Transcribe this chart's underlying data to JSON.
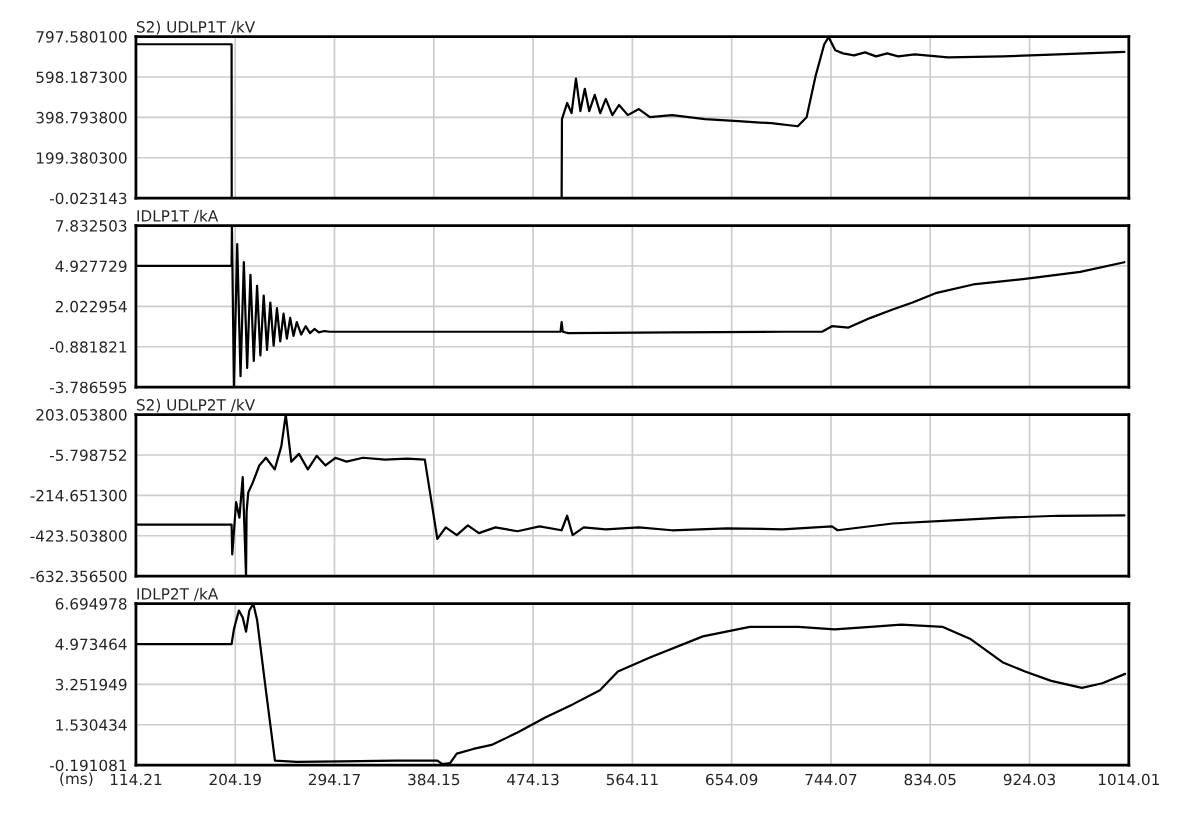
{
  "chart_data": [
    {
      "type": "line",
      "title": "S2) UDLP1T /kV",
      "color": "#000000",
      "grid": true,
      "tick_labels": "y",
      "x": [
        114.21,
        200.9,
        201.0,
        500.0,
        500.3,
        505,
        509,
        513,
        517,
        521,
        525,
        530,
        535,
        540,
        546,
        552,
        560,
        570,
        580,
        600,
        630,
        660,
        690,
        714,
        722,
        730,
        738,
        742,
        748,
        755,
        765,
        775,
        785,
        795,
        805,
        820,
        850,
        900,
        950,
        1010
      ],
      "values": [
        760,
        760,
        0,
        0,
        390,
        470,
        420,
        590,
        430,
        540,
        430,
        510,
        420,
        490,
        410,
        460,
        410,
        440,
        400,
        410,
        390,
        380,
        370,
        355,
        400,
        600,
        760,
        795,
        730,
        715,
        705,
        720,
        700,
        715,
        700,
        710,
        695,
        700,
        710,
        722
      ],
      "xlim": [
        114.21,
        1014.01
      ],
      "xticks": [
        114.21,
        204.19,
        294.17,
        384.15,
        474.13,
        564.11,
        654.09,
        744.07,
        834.05,
        924.03,
        1014.01
      ],
      "ylim": [
        -0.023143,
        797.5801
      ],
      "yticks": [
        {
          "value": -0.023143,
          "label": "-0.023143"
        },
        {
          "value": 199.3803,
          "label": "199.380300"
        },
        {
          "value": 398.7938,
          "label": "398.793800"
        },
        {
          "value": 598.1873,
          "label": "598.187300"
        },
        {
          "value": 797.5801,
          "label": "797.580100"
        }
      ]
    },
    {
      "type": "line",
      "title": "IDLP1T /kA",
      "color": "#000000",
      "grid": true,
      "tick_labels": "y",
      "x": [
        114.21,
        200.9,
        201.2,
        203,
        206,
        209,
        212,
        215,
        218,
        221,
        224,
        227,
        230,
        233,
        236,
        239,
        242,
        245,
        248,
        251,
        254,
        257,
        260,
        264,
        268,
        272,
        276,
        280,
        285,
        290,
        350,
        450,
        499,
        500,
        501,
        506,
        600,
        700,
        736,
        745,
        760,
        780,
        800,
        818,
        840,
        873,
        920,
        970,
        1010
      ],
      "values": [
        4.93,
        4.93,
        7.8,
        -3.7,
        6.5,
        -3.0,
        5.2,
        -2.4,
        4.3,
        -1.9,
        3.5,
        -1.5,
        2.8,
        -1.1,
        2.3,
        -0.8,
        1.9,
        -0.5,
        1.5,
        -0.3,
        1.2,
        -0.1,
        0.9,
        0.0,
        0.6,
        0.1,
        0.4,
        0.15,
        0.25,
        0.2,
        0.2,
        0.2,
        0.2,
        0.9,
        0.2,
        0.1,
        0.15,
        0.2,
        0.2,
        0.6,
        0.5,
        1.2,
        1.8,
        2.3,
        3.0,
        3.6,
        4.0,
        4.5,
        5.2
      ],
      "xlim": [
        114.21,
        1014.01
      ],
      "xticks": [
        114.21,
        204.19,
        294.17,
        384.15,
        474.13,
        564.11,
        654.09,
        744.07,
        834.05,
        924.03,
        1014.01
      ],
      "ylim": [
        -3.786595,
        7.832503
      ],
      "yticks": [
        {
          "value": -3.786595,
          "label": "-3.786595"
        },
        {
          "value": -0.881821,
          "label": "-0.881821"
        },
        {
          "value": 2.022954,
          "label": "2.022954"
        },
        {
          "value": 4.927729,
          "label": "4.927729"
        },
        {
          "value": 7.832503,
          "label": "7.832503"
        }
      ]
    },
    {
      "type": "line",
      "title": "S2) UDLP2T /kV",
      "color": "#000000",
      "grid": true,
      "tick_labels": "y",
      "x": [
        114.21,
        200.9,
        201.5,
        205,
        208,
        211,
        214,
        214.5,
        216,
        220,
        226,
        232,
        240,
        246,
        250,
        255,
        262,
        270,
        278,
        286,
        295,
        305,
        320,
        340,
        360,
        376,
        387.4,
        395,
        405,
        415,
        425,
        440,
        460,
        480,
        500,
        505,
        510,
        520,
        540,
        570,
        600,
        650,
        700,
        745,
        750,
        800,
        850,
        900,
        950,
        1010
      ],
      "values": [
        -366,
        -366,
        -520,
        -250,
        -330,
        -120,
        -632,
        -300,
        -200,
        -150,
        -60,
        -20,
        -80,
        40,
        203,
        -40,
        0,
        -80,
        -10,
        -60,
        -20,
        -40,
        -20,
        -30,
        -25,
        -30,
        -440,
        -380,
        -420,
        -370,
        -410,
        -380,
        -400,
        -375,
        -395,
        -320,
        -420,
        -380,
        -390,
        -380,
        -395,
        -385,
        -390,
        -375,
        -395,
        -360,
        -345,
        -330,
        -320,
        -318
      ],
      "xlim": [
        114.21,
        1014.01
      ],
      "xticks": [
        114.21,
        204.19,
        294.17,
        384.15,
        474.13,
        564.11,
        654.09,
        744.07,
        834.05,
        924.03,
        1014.01
      ],
      "ylim": [
        -632.3565,
        203.0538
      ],
      "yticks": [
        {
          "value": -632.3565,
          "label": "-632.356500"
        },
        {
          "value": -423.5038,
          "label": "-423.503800"
        },
        {
          "value": -214.6513,
          "label": "-214.651300"
        },
        {
          "value": -5.798752,
          "label": "-5.798752"
        },
        {
          "value": 203.0538,
          "label": "203.053800"
        }
      ]
    },
    {
      "type": "line",
      "title": "IDLP2T /kA",
      "color": "#000000",
      "grid": true,
      "xlabel": "(ms)",
      "x": [
        114.21,
        200.9,
        203,
        207.5,
        211,
        214,
        217,
        220.6,
        224,
        232,
        240.2,
        260,
        300,
        350,
        387.4,
        392,
        398.9,
        405,
        420,
        436.5,
        460,
        485.6,
        510,
        534.7,
        551,
        580,
        628,
        670.5,
        714.6,
        747.3,
        780,
        807.8,
        845.5,
        870,
        899.5,
        920,
        943.7,
        971.5,
        990,
        1010.7
      ],
      "values": [
        4.97,
        4.97,
        5.6,
        6.4,
        6.1,
        5.5,
        6.4,
        6.69,
        6.0,
        3.0,
        0.0,
        -0.05,
        -0.03,
        0.0,
        0.0,
        -0.15,
        -0.1,
        0.3,
        0.5,
        0.67,
        1.2,
        1.85,
        2.4,
        3.0,
        3.8,
        4.4,
        5.3,
        5.7,
        5.7,
        5.6,
        5.7,
        5.8,
        5.7,
        5.2,
        4.2,
        3.8,
        3.4,
        3.1,
        3.3,
        3.7
      ],
      "xlim": [
        114.21,
        1014.01
      ],
      "xticks": [
        114.21,
        204.19,
        294.17,
        384.15,
        474.13,
        564.11,
        654.09,
        744.07,
        834.05,
        924.03,
        1014.01
      ],
      "ylim": [
        -0.191081,
        6.694978
      ],
      "yticks": [
        {
          "value": -0.191081,
          "label": "-0.191081"
        },
        {
          "value": 1.530434,
          "label": "1.530434"
        },
        {
          "value": 3.251949,
          "label": "3.251949"
        },
        {
          "value": 4.973464,
          "label": "4.973464"
        },
        {
          "value": 6.694978,
          "label": "6.694978"
        }
      ]
    }
  ]
}
